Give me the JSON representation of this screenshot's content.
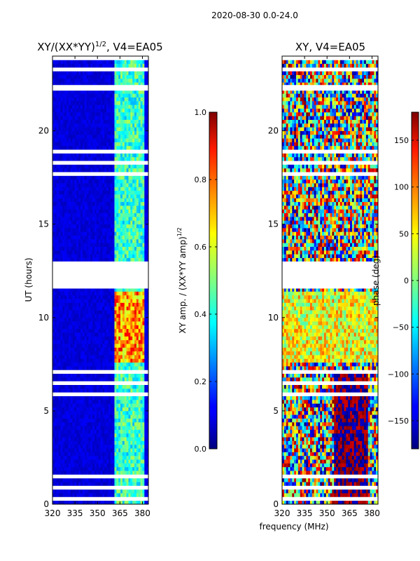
{
  "figure": {
    "suptitle": "2020-08-30 0.0-24.0",
    "xlabel": "frequency (MHz)"
  },
  "chart_data": [
    {
      "type": "heatmap",
      "title": "XY/(XX*YY)^{1/2}, V4=EA05",
      "title_prefix": "XY/(XX*YY)",
      "title_exponent": "1/2",
      "title_suffix": ", V4=EA05",
      "xlabel": "",
      "ylabel": "UT (hours)",
      "xlim": [
        320,
        384
      ],
      "ylim": [
        0,
        24
      ],
      "xticks": [
        320,
        335,
        350,
        365,
        380
      ],
      "yticks": [
        0,
        5,
        10,
        15,
        20
      ],
      "colormap": "jet",
      "colorbar": {
        "label_prefix": "XY amp. / (XX*YY amp)",
        "label_exponent": "1/2",
        "range": [
          0.0,
          1.0
        ],
        "ticks": [
          0.0,
          0.2,
          0.4,
          0.6,
          0.8,
          1.0
        ],
        "tick_labels": [
          "0.0",
          "0.2",
          "0.4",
          "0.6",
          "0.8",
          "1.0"
        ]
      },
      "data_description": "Amplitude ratio mostly low (~0.05-0.15) below 362 MHz; bright channels (~0.3-0.6) between 362 and 380 MHz; strong values (~0.7-0.9) in 362-380 MHz during 7.5-11.5 UT; no data 11.5-13 UT and 22.2-22.5 UT"
    },
    {
      "type": "heatmap",
      "title": "XY, V4=EA05",
      "xlabel": "",
      "ylabel": "",
      "xlim": [
        320,
        384
      ],
      "ylim": [
        0,
        24
      ],
      "xticks": [
        320,
        335,
        350,
        365,
        380
      ],
      "yticks": [
        0,
        5,
        10,
        15,
        20
      ],
      "colormap": "jet",
      "colorbar": {
        "label": "phase (deg)",
        "range": [
          -180,
          180
        ],
        "ticks": [
          150,
          100,
          50,
          0,
          -50,
          -100,
          -150
        ],
        "tick_labels": [
          "150",
          "100",
          "50",
          "0",
          "−50",
          "−100",
          "−150"
        ]
      },
      "data_description": "Phase varies strongly with time and frequency; near +180/-180 (red) around 355-375 MHz for 0-7 UT; mixed orange/green/blue 7-11.5 UT and 13-24 UT; no data 11.5-13 UT"
    }
  ]
}
